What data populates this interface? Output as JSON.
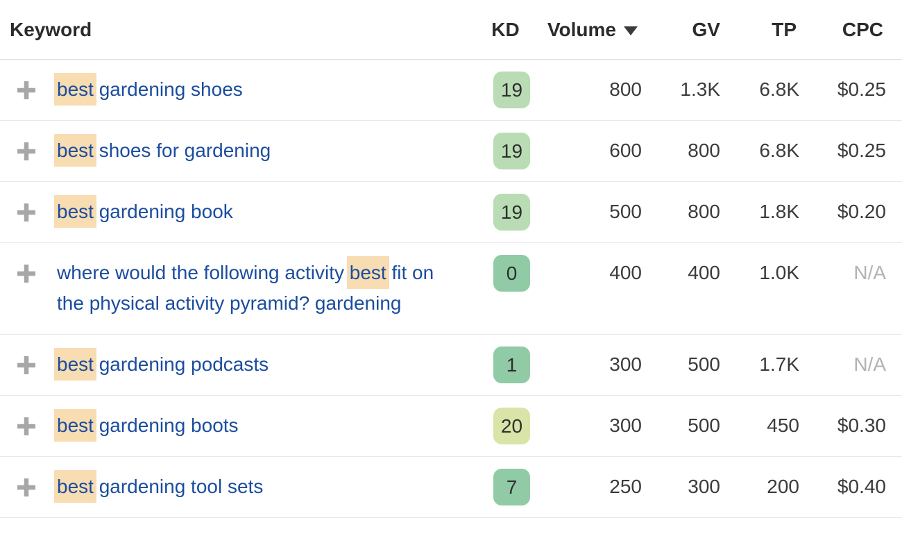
{
  "table": {
    "header": {
      "keyword": "Keyword",
      "kd": "KD",
      "volume": "Volume",
      "gv": "GV",
      "tp": "TP",
      "cpc": "CPC",
      "sort_column": "Volume",
      "sort_direction": "desc"
    },
    "highlight_term": "best",
    "rows": [
      {
        "keyword": "best gardening shoes",
        "kd": "19",
        "kd_color": "#b9dcb4",
        "volume": "800",
        "gv": "1.3K",
        "tp": "6.8K",
        "cpc": "$0.25",
        "cpc_muted": false
      },
      {
        "keyword": "best shoes for gardening",
        "kd": "19",
        "kd_color": "#b9dcb4",
        "volume": "600",
        "gv": "800",
        "tp": "6.8K",
        "cpc": "$0.25",
        "cpc_muted": false
      },
      {
        "keyword": "best gardening book",
        "kd": "19",
        "kd_color": "#b9dcb4",
        "volume": "500",
        "gv": "800",
        "tp": "1.8K",
        "cpc": "$0.20",
        "cpc_muted": false
      },
      {
        "keyword": "where would the following activity best fit on the physical activity pyramid? gardening",
        "kd": "0",
        "kd_color": "#90cba6",
        "volume": "400",
        "gv": "400",
        "tp": "1.0K",
        "cpc": "N/A",
        "cpc_muted": true
      },
      {
        "keyword": "best gardening podcasts",
        "kd": "1",
        "kd_color": "#90cba6",
        "volume": "300",
        "gv": "500",
        "tp": "1.7K",
        "cpc": "N/A",
        "cpc_muted": true
      },
      {
        "keyword": "best gardening boots",
        "kd": "20",
        "kd_color": "#d9e4a8",
        "volume": "300",
        "gv": "500",
        "tp": "450",
        "cpc": "$0.30",
        "cpc_muted": false
      },
      {
        "keyword": "best gardening tool sets",
        "kd": "7",
        "kd_color": "#90cba6",
        "volume": "250",
        "gv": "300",
        "tp": "200",
        "cpc": "$0.40",
        "cpc_muted": false
      }
    ]
  },
  "colors": {
    "link": "#1b4d9e",
    "highlight_bg": "#f8dcb2",
    "header_text": "#2b2b2b",
    "number_text": "#3b3b3b",
    "muted_text": "#b3b3b3",
    "row_border": "#e9e9e9",
    "plus_icon": "#a7a7a7",
    "badge_text": "#2f2f2f",
    "kd_green_light": "#b9dcb4",
    "kd_green_medium": "#90cba6",
    "kd_yellow_green": "#d9e4a8"
  }
}
